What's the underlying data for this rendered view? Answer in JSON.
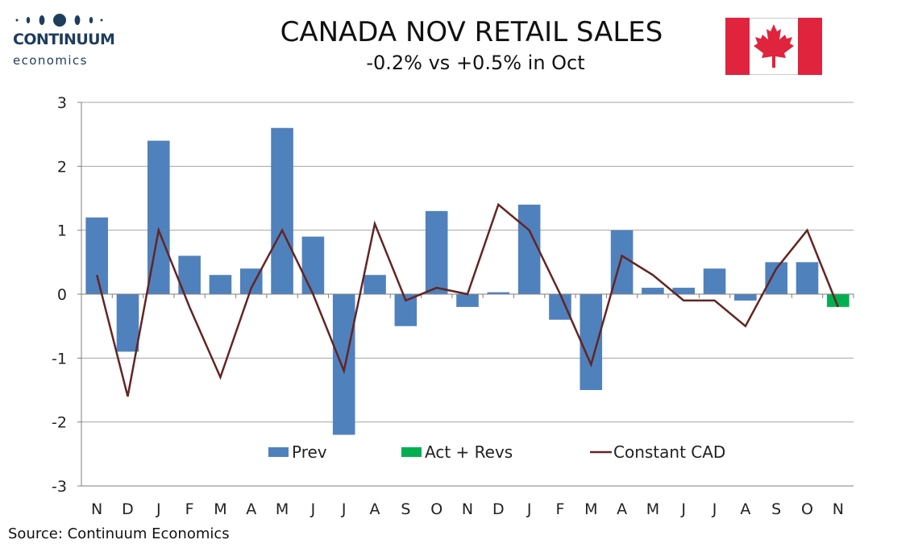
{
  "header": {
    "title": "CANADA NOV RETAIL SALES",
    "subtitle": "-0.2% vs +0.5% in Oct"
  },
  "logo": {
    "line1": "CONTINUUM",
    "line2": "economics",
    "color": "#1f3d5c"
  },
  "flag": {
    "icon": "canada-flag-icon",
    "red": "#e0243d",
    "white": "#ffffff"
  },
  "source": "Source: Continuum Economics",
  "colors": {
    "prev": "#4f81bd",
    "act": "#00b050",
    "line": "#632523",
    "grid": "#a6a6a6",
    "axis": "#7f7f7f"
  },
  "chart_data": {
    "type": "bar",
    "title": "CANADA NOV RETAIL SALES",
    "subtitle": "-0.2% vs +0.5% in Oct",
    "categories": [
      "N",
      "D",
      "J",
      "F",
      "M",
      "A",
      "M",
      "J",
      "J",
      "A",
      "S",
      "O",
      "N",
      "D",
      "J",
      "F",
      "M",
      "A",
      "M",
      "J",
      "J",
      "A",
      "S",
      "O",
      "N"
    ],
    "ylim": [
      -3,
      3
    ],
    "yticks": [
      3,
      2,
      1,
      0,
      -1,
      -2,
      -3
    ],
    "grid": true,
    "legend_position": "bottom-inside",
    "series": [
      {
        "name": "Prev",
        "type": "bar",
        "values": [
          1.2,
          -0.9,
          2.4,
          0.6,
          0.3,
          0.4,
          2.6,
          0.9,
          -2.2,
          0.3,
          -0.5,
          1.3,
          -0.2,
          0.03,
          1.4,
          -0.4,
          -1.5,
          1.0,
          0.1,
          0.1,
          0.4,
          -0.1,
          0.5,
          0.5,
          null
        ]
      },
      {
        "name": "Act + Revs",
        "type": "bar",
        "values": [
          null,
          null,
          null,
          null,
          null,
          null,
          null,
          null,
          null,
          null,
          null,
          null,
          null,
          null,
          null,
          null,
          null,
          null,
          null,
          null,
          null,
          null,
          null,
          null,
          -0.2
        ]
      },
      {
        "name": "Constant CAD",
        "type": "line",
        "values": [
          0.3,
          -1.6,
          1.0,
          -0.2,
          -1.3,
          0.1,
          1.0,
          0.0,
          -1.2,
          1.1,
          -0.1,
          0.1,
          0.0,
          1.4,
          1.0,
          0.0,
          -1.1,
          0.6,
          0.3,
          -0.1,
          -0.1,
          -0.5,
          0.4,
          1.0,
          -0.2
        ]
      }
    ]
  }
}
